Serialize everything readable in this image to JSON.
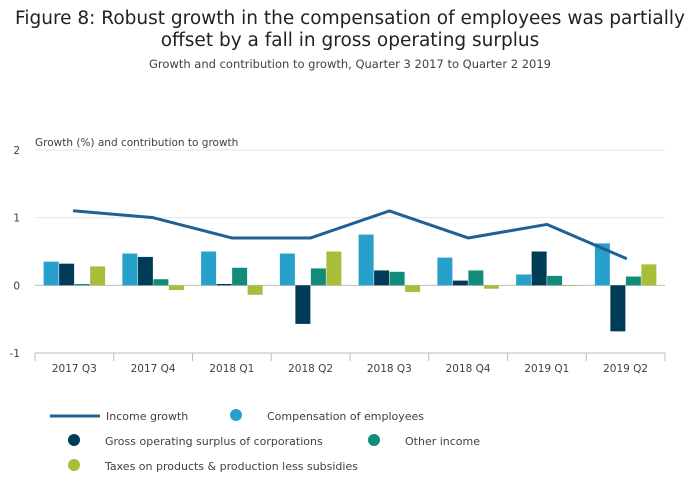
{
  "header": {
    "title_line1": "Figure 8: Robust growth in the compensation of employees was partially",
    "title_line2": "offset by a fall in gross operating surplus",
    "subtitle": "Growth and contribution to growth, Quarter 3 2017 to Quarter 2 2019"
  },
  "colors": {
    "line": "#206095",
    "compensation": "#27a0cc",
    "gross_operating": "#003c57",
    "other_income": "#118c7b",
    "taxes": "#a8bd3a",
    "grid": "#e5e5e5",
    "axis": "#bebebe"
  },
  "chart_data": {
    "type": "bar",
    "title": "Figure 8: Robust growth in the compensation of employees was partially offset by a fall in gross operating surplus",
    "subtitle": "Growth and contribution to growth, Quarter 3 2017 to Quarter 2 2019",
    "ylabel": "Growth (%) and contribution to growth",
    "xlabel": "",
    "ylim": [
      -1,
      2
    ],
    "yticks": [
      "2",
      "1",
      "0",
      "-1"
    ],
    "grid": true,
    "legend_position": "bottom",
    "categories": [
      "2017 Q3",
      "2017 Q4",
      "2018 Q1",
      "2018 Q2",
      "2018 Q3",
      "2018 Q4",
      "2019 Q1",
      "2019 Q2"
    ],
    "series": [
      {
        "name": "Compensation of employees",
        "type": "bar",
        "values": [
          0.35,
          0.47,
          0.5,
          0.47,
          0.75,
          0.41,
          0.16,
          0.62
        ]
      },
      {
        "name": "Gross operating surplus of corporations",
        "type": "bar",
        "values": [
          0.32,
          0.42,
          0.02,
          -0.57,
          0.22,
          0.07,
          0.5,
          -0.68
        ]
      },
      {
        "name": "Other income",
        "type": "bar",
        "values": [
          0.02,
          0.09,
          0.26,
          0.25,
          0.2,
          0.22,
          0.14,
          0.13
        ]
      },
      {
        "name": "Taxes on products & production less subsidies",
        "type": "bar",
        "values": [
          0.28,
          -0.07,
          -0.14,
          0.5,
          -0.1,
          -0.05,
          -0.01,
          0.31
        ]
      },
      {
        "name": "Income growth",
        "type": "line",
        "values": [
          1.1,
          1.0,
          0.7,
          0.7,
          1.1,
          0.7,
          0.9,
          0.4
        ]
      }
    ]
  },
  "legend": [
    {
      "label": "Income growth",
      "kind": "line",
      "color_key": "line"
    },
    {
      "label": "Compensation of employees",
      "kind": "dot",
      "color_key": "compensation"
    },
    {
      "label": "Gross operating surplus of corporations",
      "kind": "dot",
      "color_key": "gross_operating"
    },
    {
      "label": "Other income",
      "kind": "dot",
      "color_key": "other_income"
    },
    {
      "label": "Taxes on products & production less subsidies",
      "kind": "dot",
      "color_key": "taxes"
    }
  ]
}
